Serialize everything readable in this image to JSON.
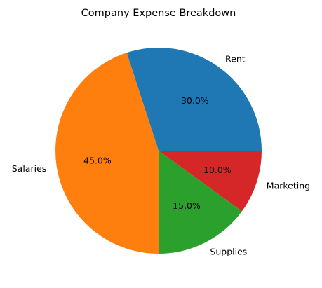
{
  "chart_data": {
    "type": "pie",
    "title": "Company Expense Breakdown",
    "categories": [
      "Rent",
      "Salaries",
      "Supplies",
      "Marketing"
    ],
    "values": [
      30,
      45,
      15,
      10
    ],
    "pct_labels": [
      "30.0%",
      "45.0%",
      "15.0%",
      "10.0%"
    ],
    "colors": [
      "#1f77b4",
      "#ff7f0e",
      "#2ca02c",
      "#d62728"
    ],
    "start_angle_deg": 0,
    "direction": "counterclockwise",
    "legend": "none"
  }
}
